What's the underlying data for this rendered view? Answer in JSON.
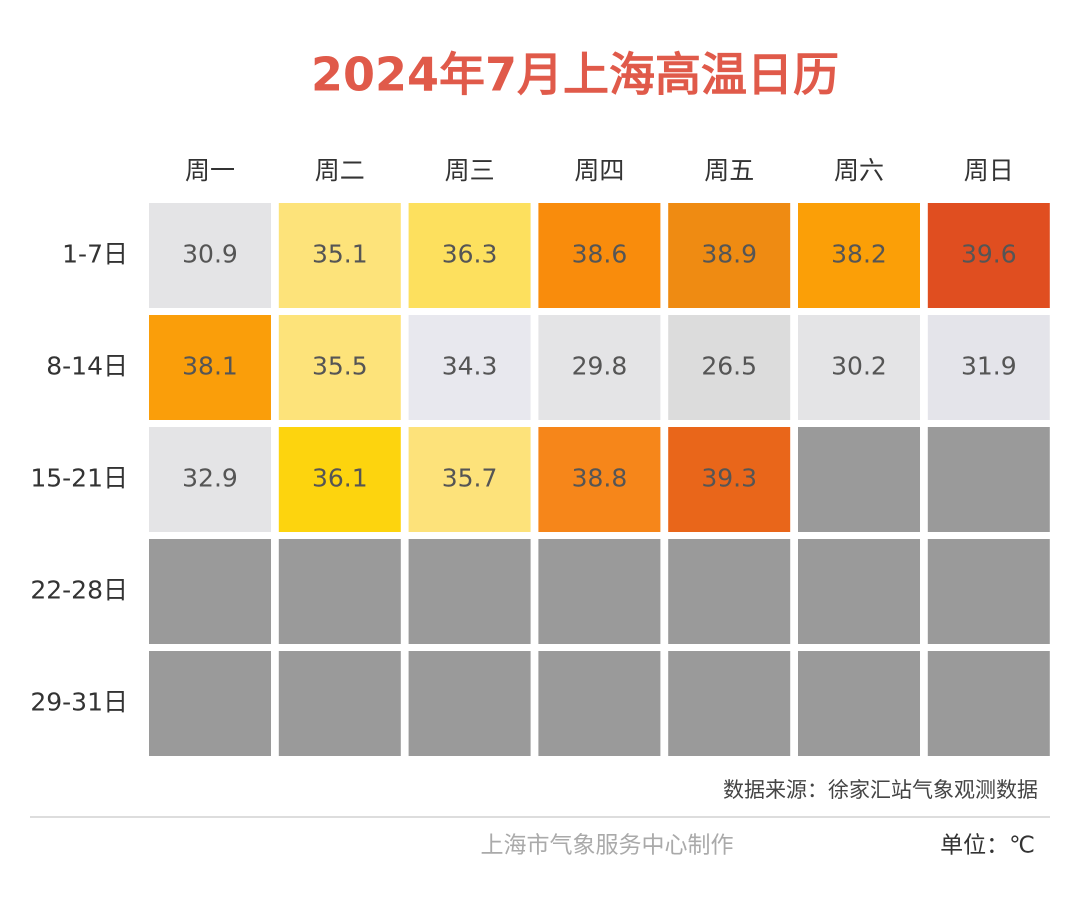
{
  "chart_data": {
    "type": "heatmap",
    "title": "2024年7月上海高温日历",
    "columns": [
      "周一",
      "周二",
      "周三",
      "周四",
      "周五",
      "周六",
      "周日"
    ],
    "rows": [
      "1-7日",
      "8-14日",
      "15-21日",
      "22-28日",
      "29-31日"
    ],
    "values": [
      [
        30.9,
        35.1,
        36.3,
        38.6,
        38.9,
        38.2,
        39.6
      ],
      [
        38.1,
        35.5,
        34.3,
        29.8,
        26.5,
        30.2,
        31.9
      ],
      [
        32.9,
        36.1,
        35.7,
        38.8,
        39.3,
        null,
        null
      ],
      [
        null,
        null,
        null,
        null,
        null,
        null,
        null
      ],
      [
        null,
        null,
        null,
        null,
        null,
        null,
        null
      ]
    ],
    "colors": [
      [
        "#e4e4e6",
        "#fde37a",
        "#fde05e",
        "#f98c0c",
        "#ef8b12",
        "#fb9f07",
        "#e04e20"
      ],
      [
        "#fa9e0a",
        "#fde37a",
        "#e8e8ee",
        "#e4e4e6",
        "#dcdcdc",
        "#e4e4e6",
        "#e4e4ea"
      ],
      [
        "#e4e4e6",
        "#fdd40e",
        "#fde27a",
        "#f6861a",
        "#e9661a",
        null,
        null
      ],
      [
        null,
        null,
        null,
        null,
        null,
        null,
        null
      ],
      [
        null,
        null,
        null,
        null,
        null,
        null,
        null
      ]
    ],
    "empty_color": "#9a9a9a",
    "title_color": "#e05a4a",
    "source": "数据来源：徐家汇站气象观测数据",
    "credit": "上海市气象服务中心制作",
    "unit": "单位：℃"
  }
}
